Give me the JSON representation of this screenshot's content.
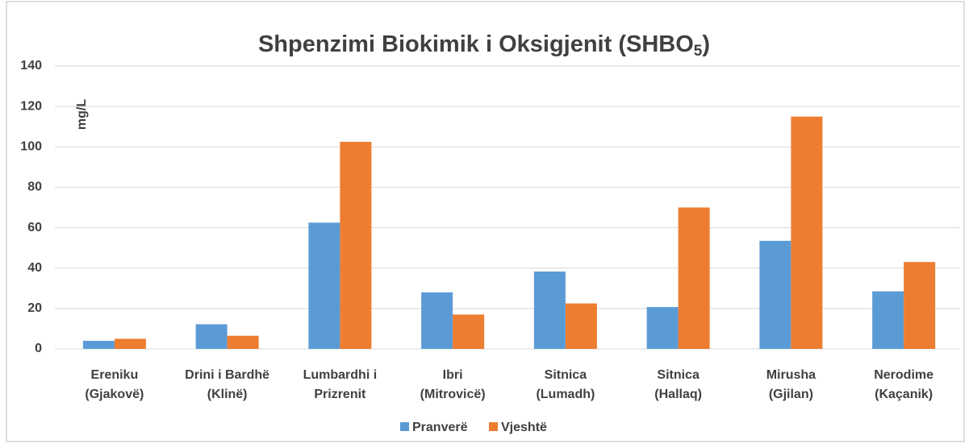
{
  "chart_data": {
    "type": "bar",
    "title_parts": [
      "Shpenzimi Biokimik i Oksigjenit (SHBO",
      "5",
      ")"
    ],
    "ylabel": "mg/L",
    "categories": [
      [
        "Ereniku",
        "(Gjakovë)"
      ],
      [
        "Drini i Bardhë",
        "(Klinë)"
      ],
      [
        "Lumbardhi i",
        "Prizrenit"
      ],
      [
        "Ibri",
        "(Mitrovicë)"
      ],
      [
        "Sitnica",
        "(Lumadh)"
      ],
      [
        "Sitnica",
        "(Hallaq)"
      ],
      [
        "Mirusha",
        "(Gjilan)"
      ],
      [
        "Nerodime",
        "(Kaçanik)"
      ]
    ],
    "series": [
      {
        "name": "Pranverë",
        "color": "#5b9bd5",
        "values": [
          4,
          12.2,
          62.5,
          28,
          38.3,
          20.7,
          53.5,
          28.5
        ]
      },
      {
        "name": "Vjeshtë",
        "color": "#ed7d31",
        "values": [
          5,
          6.5,
          102.5,
          17,
          22.5,
          70,
          115,
          43
        ]
      }
    ],
    "ylim": [
      0,
      140
    ],
    "yticks": [
      0,
      20,
      40,
      60,
      80,
      100,
      120,
      140
    ],
    "grid": true,
    "legend": "bottom"
  }
}
